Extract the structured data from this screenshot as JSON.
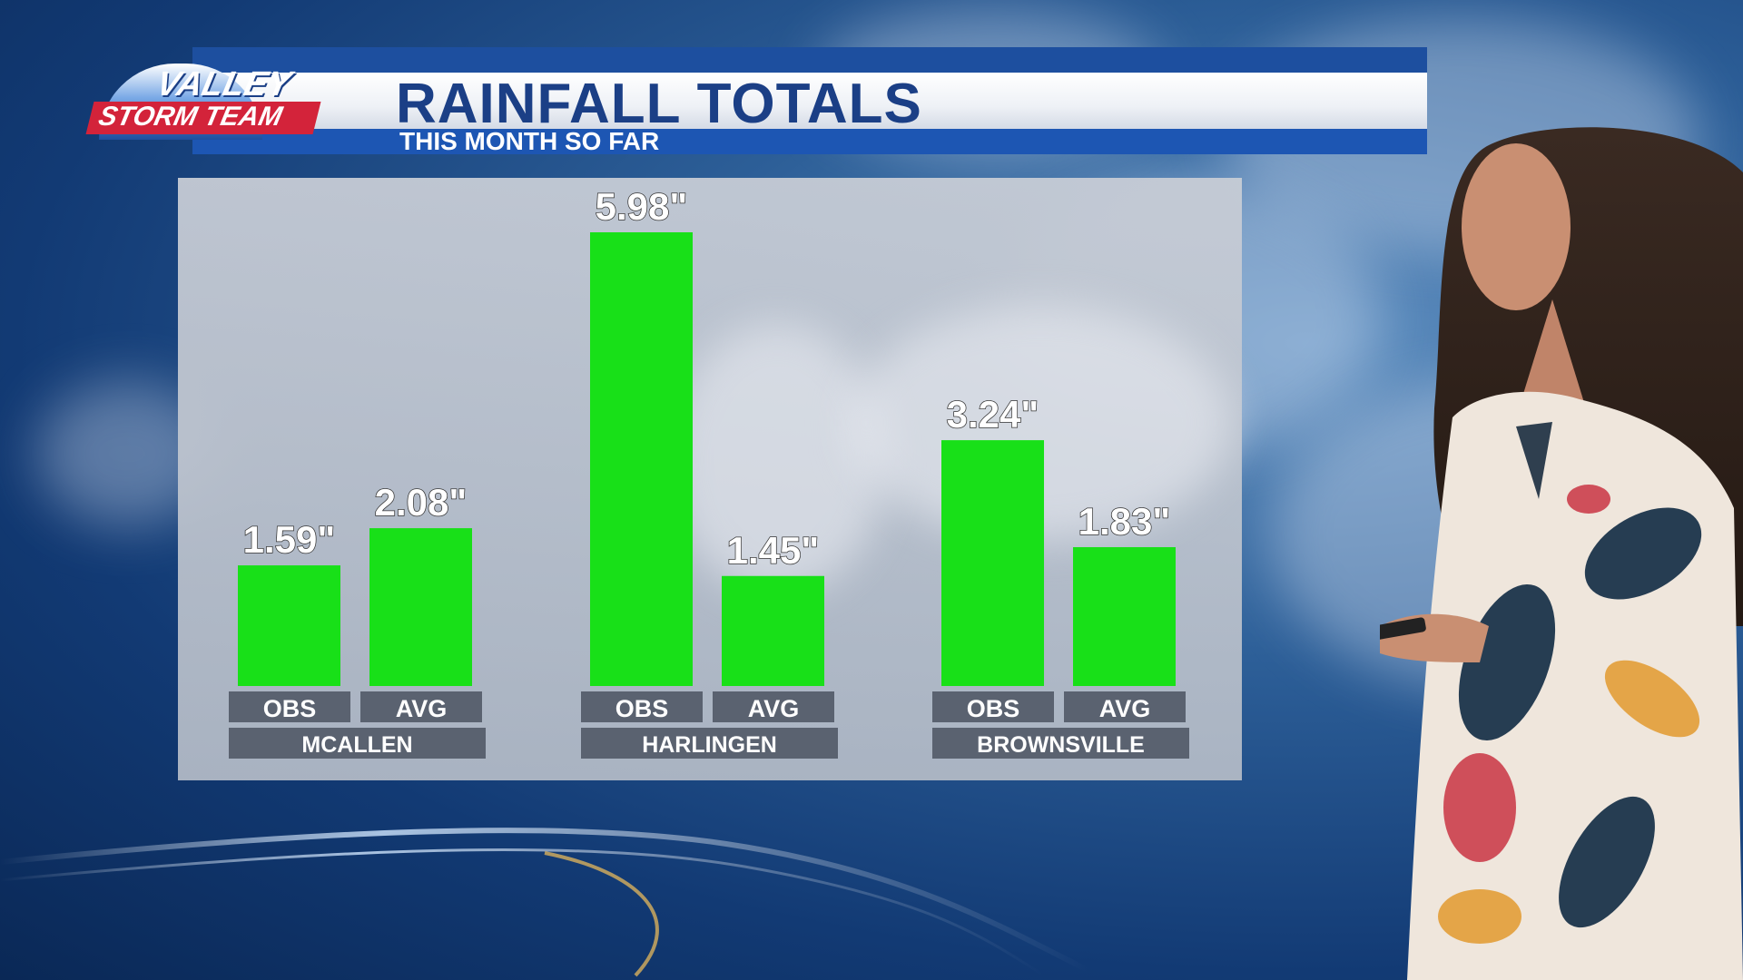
{
  "logo": {
    "line1": "VALLEY",
    "line2": "STORM TEAM"
  },
  "header": {
    "title": "RAINFALL TOTALS",
    "subtitle": "THIS MONTH SO FAR"
  },
  "colors": {
    "bar": "#18e018",
    "label_bg": "#5a6270",
    "label_text": "#ffffff",
    "title": "#1b3f86",
    "header_blue": "#1d56b3"
  },
  "chart_data": {
    "type": "bar",
    "title": "RAINFALL TOTALS",
    "subtitle": "THIS MONTH SO FAR",
    "unit": "\"",
    "categories": [
      "MCALLEN",
      "HARLINGEN",
      "BROWNSVILLE"
    ],
    "series_labels": [
      "OBS",
      "AVG"
    ],
    "groups": [
      {
        "category": "MCALLEN",
        "bars": [
          {
            "label": "OBS",
            "value": 1.59,
            "display": "1.59\""
          },
          {
            "label": "AVG",
            "value": 2.08,
            "display": "2.08\""
          }
        ]
      },
      {
        "category": "HARLINGEN",
        "bars": [
          {
            "label": "OBS",
            "value": 5.98,
            "display": "5.98\""
          },
          {
            "label": "AVG",
            "value": 1.45,
            "display": "1.45\""
          }
        ]
      },
      {
        "category": "BROWNSVILLE",
        "bars": [
          {
            "label": "OBS",
            "value": 3.24,
            "display": "3.24\""
          },
          {
            "label": "AVG",
            "value": 1.83,
            "display": "1.83\""
          }
        ]
      }
    ],
    "ylim": [
      0,
      5.98
    ],
    "grid": false,
    "legend": "none"
  }
}
